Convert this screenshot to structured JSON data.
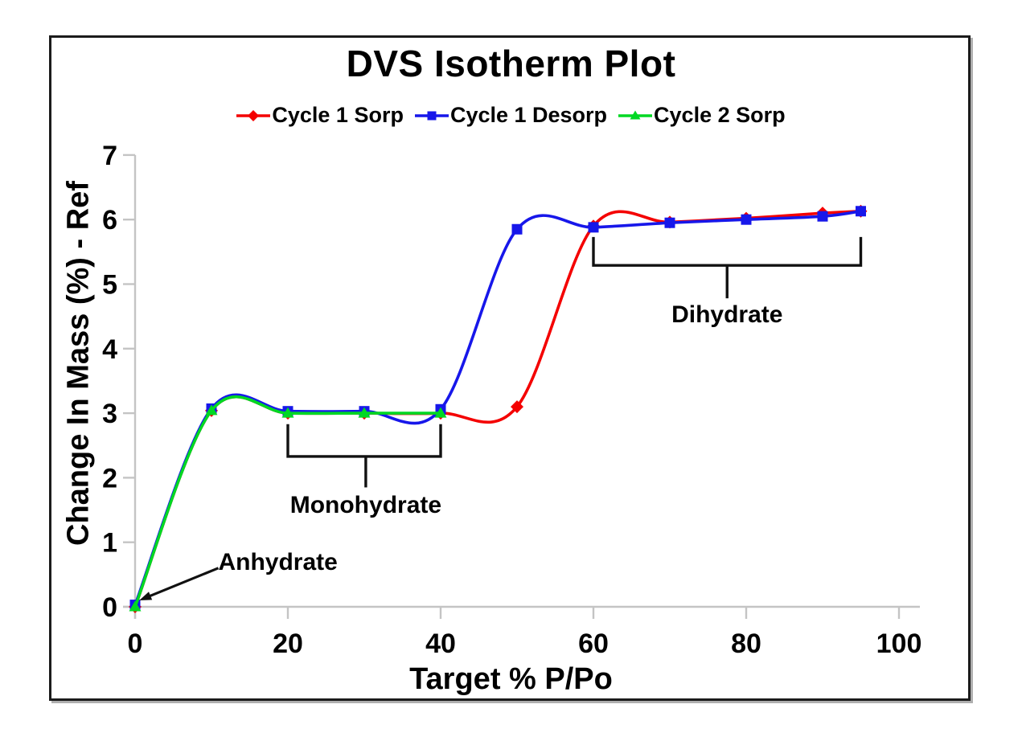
{
  "figure": {
    "background": "#ffffff",
    "frame_border_color": "#1b1b1b",
    "axis_color": "#c4c4c4",
    "annotation_color": "#111111"
  },
  "chart_data": {
    "type": "line",
    "title": "DVS Isotherm Plot",
    "xlabel": "Target % P/Po",
    "ylabel": "Change In Mass (%) - Ref",
    "xlim": [
      0,
      100
    ],
    "ylim": [
      0,
      7
    ],
    "x_ticks": [
      "0",
      "20",
      "40",
      "60",
      "80",
      "100"
    ],
    "x_tick_values": [
      0,
      20,
      40,
      60,
      80,
      100
    ],
    "y_ticks": [
      "0",
      "1",
      "2",
      "3",
      "4",
      "5",
      "6",
      "7"
    ],
    "y_tick_values": [
      0,
      1,
      2,
      3,
      4,
      5,
      6,
      7
    ],
    "grid": false,
    "legend_position": "top-center",
    "line_smoothing": "spline",
    "series": [
      {
        "name": "Cycle 1 Sorp",
        "color": "#f40000",
        "marker": "diamond",
        "points": [
          [
            0,
            0
          ],
          [
            10,
            3.04
          ],
          [
            20,
            3.0
          ],
          [
            30,
            3.0
          ],
          [
            40,
            3.0
          ],
          [
            50,
            3.1
          ],
          [
            60,
            5.9
          ],
          [
            70,
            5.96
          ],
          [
            80,
            6.02
          ],
          [
            90,
            6.1
          ],
          [
            95,
            6.13
          ]
        ]
      },
      {
        "name": "Cycle 1 Desorp",
        "color": "#1717ea",
        "marker": "square",
        "points": [
          [
            95,
            6.13
          ],
          [
            90,
            6.05
          ],
          [
            80,
            6.0
          ],
          [
            70,
            5.95
          ],
          [
            60,
            5.88
          ],
          [
            50,
            5.85
          ],
          [
            40,
            3.06
          ],
          [
            30,
            3.03
          ],
          [
            20,
            3.03
          ],
          [
            10,
            3.07
          ],
          [
            0,
            0.03
          ]
        ]
      },
      {
        "name": "Cycle 2 Sorp",
        "color": "#00d823",
        "marker": "triangle",
        "points": [
          [
            0,
            0
          ],
          [
            10,
            3.04
          ],
          [
            20,
            3.0
          ],
          [
            30,
            3.0
          ],
          [
            40,
            3.0
          ]
        ]
      }
    ],
    "annotations": [
      {
        "label": "Anhydrate",
        "type": "arrow",
        "from_x": 10.9,
        "from_y": 0.6,
        "target_x": 0.55,
        "target_y": 0.1,
        "label_x": 18.7,
        "label_y": 0.69
      },
      {
        "label": "Monohydrate",
        "type": "bracket",
        "x_start": 20,
        "x_end": 40,
        "y_top": 2.83,
        "y_bar": 2.33,
        "y_stem": 1.85,
        "label_x": 30.2,
        "label_y": 1.57
      },
      {
        "label": "Dihydrate",
        "type": "bracket",
        "x_start": 60,
        "x_end": 95,
        "y_top": 5.73,
        "y_bar": 5.29,
        "y_stem": 4.78,
        "label_x": 77.5,
        "label_y": 4.52
      }
    ]
  }
}
